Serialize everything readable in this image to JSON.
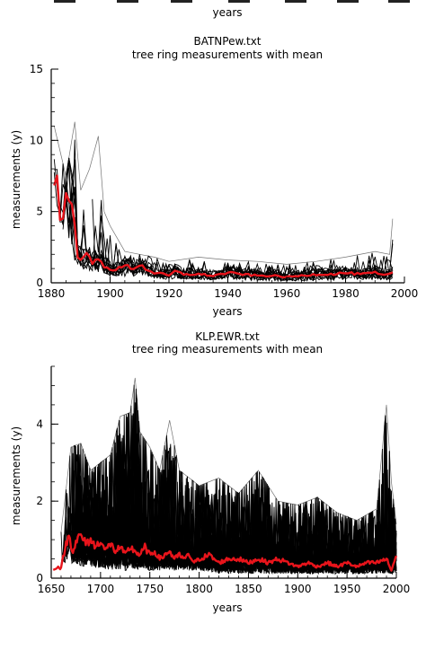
{
  "chart_data": [
    {
      "type": "line",
      "partial": true,
      "xlabel": "years",
      "series": []
    },
    {
      "type": "line",
      "title": "BATNPew.txt",
      "subtitle": "tree ring measurements with mean",
      "xlabel": "years",
      "ylabel": "measurements (y)",
      "xlim": [
        1880,
        2000
      ],
      "ylim": [
        0,
        15
      ],
      "xticks": [
        1880,
        1900,
        1920,
        1940,
        1960,
        1980,
        2000
      ],
      "yticks": [
        0,
        5,
        10,
        15
      ],
      "xtick_labels": [
        "1880",
        "1900",
        "1920",
        "1940",
        "1960",
        "1980",
        "2000"
      ],
      "ytick_labels": [
        "0",
        "5",
        "10",
        "15"
      ],
      "grid": false,
      "series": [
        {
          "color": "#000000",
          "role": "individual tree ring series",
          "x": [
            1881,
            1885,
            1888,
            1890,
            1893,
            1896,
            1898,
            1900,
            1905,
            1910,
            1915,
            1920,
            1930,
            1940,
            1950,
            1960,
            1970,
            1980,
            1990,
            1995,
            1996
          ],
          "envelope_low": [
            4.5,
            3.5,
            1.5,
            1.0,
            0.8,
            0.6,
            0.5,
            0.5,
            0.4,
            0.5,
            0.3,
            0.2,
            0.2,
            0.2,
            0.1,
            0.1,
            0.1,
            0.2,
            0.2,
            0.2,
            0.3
          ],
          "envelope_high": [
            11.0,
            7.5,
            11.3,
            6.5,
            8.0,
            10.3,
            5.0,
            4.0,
            2.2,
            2.0,
            1.8,
            1.5,
            1.8,
            1.6,
            1.5,
            1.3,
            1.5,
            1.8,
            2.2,
            2.0,
            4.5
          ]
        },
        {
          "color": "#e8141b",
          "role": "mean",
          "x": [
            1881,
            1882,
            1883,
            1884,
            1885,
            1886,
            1887,
            1888,
            1889,
            1890,
            1892,
            1894,
            1896,
            1898,
            1900,
            1902,
            1905,
            1908,
            1910,
            1912,
            1915,
            1918,
            1920,
            1922,
            1925,
            1930,
            1935,
            1940,
            1945,
            1950,
            1955,
            1960,
            1965,
            1970,
            1975,
            1980,
            1985,
            1990,
            1993,
            1995,
            1996
          ],
          "y": [
            7.2,
            7.4,
            5.0,
            4.2,
            6.0,
            6.1,
            5.0,
            4.5,
            2.0,
            1.8,
            1.9,
            1.4,
            1.6,
            1.2,
            1.0,
            0.9,
            1.2,
            1.0,
            1.3,
            1.0,
            0.7,
            0.6,
            0.5,
            0.8,
            0.6,
            0.6,
            0.5,
            0.7,
            0.6,
            0.5,
            0.5,
            0.4,
            0.5,
            0.6,
            0.6,
            0.7,
            0.6,
            0.7,
            0.5,
            0.6,
            0.8
          ]
        }
      ]
    },
    {
      "type": "line",
      "title": "KLP.EWR.txt",
      "subtitle": "tree ring measurements with mean",
      "xlabel": "years",
      "ylabel": "measurements (y)",
      "xlim": [
        1650,
        2000
      ],
      "ylim": [
        0,
        5.5
      ],
      "xticks": [
        1650,
        1700,
        1750,
        1800,
        1850,
        1900,
        1950,
        2000
      ],
      "yticks": [
        0,
        2,
        4
      ],
      "xtick_labels": [
        "1650",
        "1700",
        "1750",
        "1800",
        "1850",
        "1900",
        "1950",
        "2000"
      ],
      "ytick_labels": [
        "0",
        "2",
        "4"
      ],
      "grid": false,
      "series": [
        {
          "color": "#000000",
          "role": "individual tree ring series",
          "x": [
            1660,
            1670,
            1680,
            1690,
            1700,
            1710,
            1720,
            1730,
            1735,
            1740,
            1750,
            1760,
            1770,
            1780,
            1790,
            1800,
            1820,
            1840,
            1860,
            1880,
            1900,
            1920,
            1940,
            1960,
            1980,
            1990,
            1995,
            2000
          ],
          "envelope_low": [
            0.2,
            0.4,
            0.3,
            0.3,
            0.2,
            0.2,
            0.2,
            0.2,
            0.2,
            0.2,
            0.2,
            0.2,
            0.2,
            0.2,
            0.2,
            0.2,
            0.1,
            0.1,
            0.1,
            0.1,
            0.1,
            0.1,
            0.1,
            0.1,
            0.1,
            0.1,
            0.1,
            0.1
          ],
          "envelope_high": [
            1.2,
            3.4,
            3.5,
            2.8,
            3.0,
            3.2,
            4.2,
            4.3,
            5.2,
            3.8,
            3.4,
            2.8,
            4.1,
            2.8,
            2.6,
            2.4,
            2.6,
            2.2,
            2.8,
            2.0,
            1.9,
            2.1,
            1.7,
            1.5,
            1.8,
            4.5,
            2.5,
            1.4
          ]
        },
        {
          "color": "#e8141b",
          "role": "mean",
          "x": [
            1652,
            1656,
            1660,
            1664,
            1668,
            1672,
            1676,
            1680,
            1685,
            1690,
            1695,
            1700,
            1705,
            1710,
            1715,
            1720,
            1725,
            1730,
            1735,
            1740,
            1745,
            1750,
            1755,
            1760,
            1765,
            1770,
            1775,
            1780,
            1785,
            1790,
            1795,
            1800,
            1810,
            1820,
            1830,
            1840,
            1850,
            1860,
            1870,
            1880,
            1890,
            1900,
            1910,
            1920,
            1930,
            1940,
            1950,
            1960,
            1970,
            1980,
            1990,
            1995,
            2000
          ],
          "y": [
            0.2,
            0.3,
            0.25,
            0.8,
            1.1,
            0.7,
            1.0,
            1.1,
            0.9,
            1.0,
            0.8,
            1.0,
            0.7,
            0.9,
            0.7,
            0.8,
            0.6,
            0.8,
            0.7,
            0.6,
            0.8,
            0.6,
            0.7,
            0.5,
            0.6,
            0.7,
            0.5,
            0.6,
            0.5,
            0.6,
            0.4,
            0.5,
            0.6,
            0.4,
            0.5,
            0.5,
            0.4,
            0.5,
            0.4,
            0.5,
            0.4,
            0.3,
            0.4,
            0.3,
            0.4,
            0.3,
            0.4,
            0.3,
            0.4,
            0.4,
            0.5,
            0.2,
            0.6
          ]
        }
      ]
    }
  ]
}
